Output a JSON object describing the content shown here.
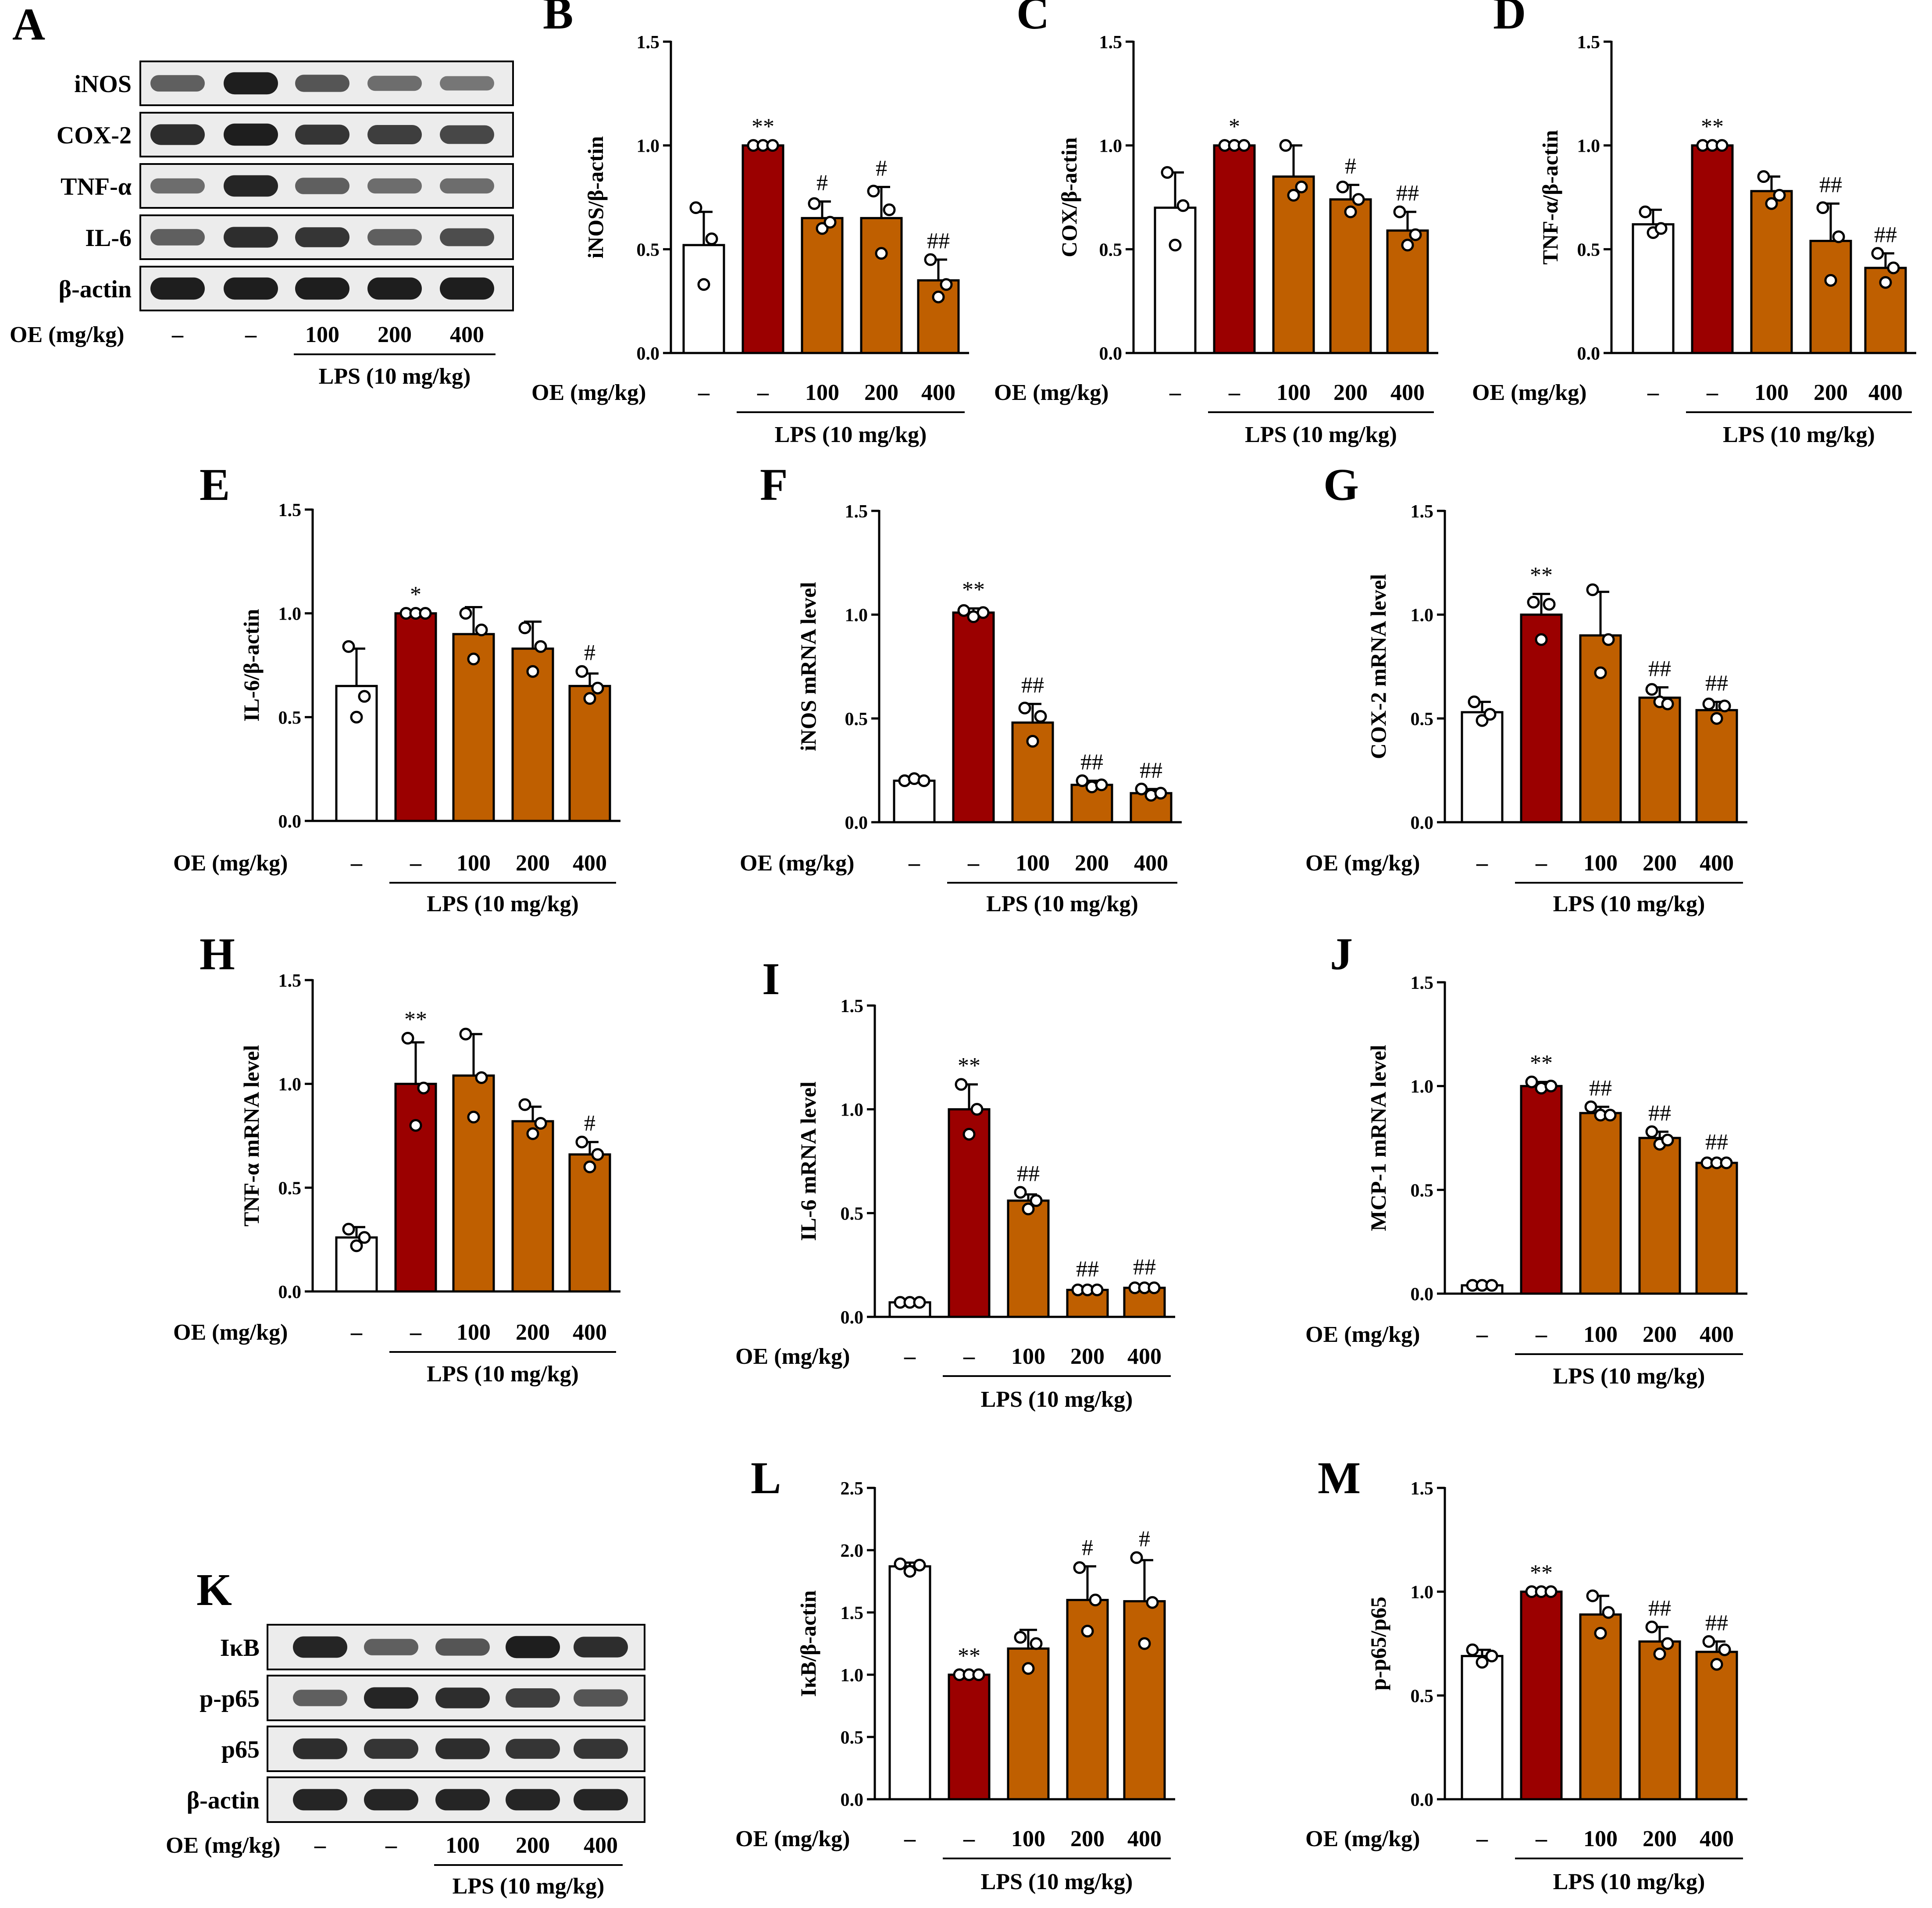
{
  "figure": {
    "colors": {
      "control": "#ffffff",
      "lps": "#9b0000",
      "oe": "#bf5f00",
      "edge": "#000000",
      "blot_bg": "#ececec",
      "band": "#151515"
    },
    "group_labels": [
      "–",
      "–",
      "100",
      "200",
      "400"
    ],
    "oe_label": "OE (mg/kg)",
    "lps_label": "LPS (10 mg/kg)"
  },
  "blots": [
    {
      "panel": "A",
      "rows": [
        "iNOS",
        "COX-2",
        "TNF-α",
        "IL-6",
        "β-actin"
      ],
      "intensity": [
        [
          0.55,
          0.95,
          0.6,
          0.45,
          0.4
        ],
        [
          0.85,
          0.95,
          0.8,
          0.75,
          0.7
        ],
        [
          0.45,
          0.9,
          0.55,
          0.45,
          0.45
        ],
        [
          0.55,
          0.85,
          0.8,
          0.55,
          0.65
        ],
        [
          0.95,
          0.95,
          0.95,
          0.95,
          0.95
        ]
      ]
    },
    {
      "panel": "K",
      "rows": [
        "IκB",
        "p-p65",
        "p65",
        "β-actin"
      ],
      "intensity": [
        [
          0.9,
          0.55,
          0.6,
          0.95,
          0.85
        ],
        [
          0.55,
          0.9,
          0.85,
          0.75,
          0.6
        ],
        [
          0.85,
          0.8,
          0.85,
          0.8,
          0.8
        ],
        [
          0.9,
          0.9,
          0.9,
          0.9,
          0.9
        ]
      ]
    }
  ],
  "chart_data": [
    {
      "panel": "B",
      "type": "bar",
      "ylabel": "iNOS/β-actin",
      "ylim": [
        0,
        1.5
      ],
      "yticks": [
        "0.0",
        "0.5",
        "1.0",
        "1.5"
      ],
      "categories": [
        "–",
        "–",
        "100",
        "200",
        "400"
      ],
      "values": [
        0.52,
        1.0,
        0.65,
        0.65,
        0.35
      ],
      "errors": [
        0.16,
        0.0,
        0.08,
        0.15,
        0.1
      ],
      "points": [
        [
          0.7,
          0.33,
          0.55
        ],
        [
          1.0,
          1.0,
          1.0
        ],
        [
          0.72,
          0.6,
          0.63
        ],
        [
          0.78,
          0.48,
          0.69
        ],
        [
          0.45,
          0.27,
          0.33
        ]
      ],
      "annotations": [
        "",
        "**",
        "#",
        "#",
        "##"
      ]
    },
    {
      "panel": "C",
      "type": "bar",
      "ylabel": "COX/β-actin",
      "ylim": [
        0,
        1.5
      ],
      "yticks": [
        "0.0",
        "0.5",
        "1.0",
        "1.5"
      ],
      "categories": [
        "–",
        "–",
        "100",
        "200",
        "400"
      ],
      "values": [
        0.7,
        1.0,
        0.85,
        0.74,
        0.59
      ],
      "errors": [
        0.17,
        0.0,
        0.15,
        0.07,
        0.09
      ],
      "points": [
        [
          0.87,
          0.52,
          0.71
        ],
        [
          1.0,
          1.0,
          1.0
        ],
        [
          1.0,
          0.76,
          0.8
        ],
        [
          0.8,
          0.68,
          0.74
        ],
        [
          0.68,
          0.52,
          0.57
        ]
      ],
      "annotations": [
        "",
        "*",
        "",
        "#",
        "##"
      ]
    },
    {
      "panel": "D",
      "type": "bar",
      "ylabel": "TNF-α/β-actin",
      "ylim": [
        0,
        1.5
      ],
      "yticks": [
        "0.0",
        "0.5",
        "1.0",
        "1.5"
      ],
      "categories": [
        "–",
        "–",
        "100",
        "200",
        "400"
      ],
      "values": [
        0.62,
        1.0,
        0.78,
        0.54,
        0.41
      ],
      "errors": [
        0.07,
        0.0,
        0.07,
        0.18,
        0.07
      ],
      "points": [
        [
          0.68,
          0.58,
          0.6
        ],
        [
          1.0,
          1.0,
          1.0
        ],
        [
          0.85,
          0.72,
          0.76
        ],
        [
          0.7,
          0.35,
          0.56
        ],
        [
          0.48,
          0.34,
          0.41
        ]
      ],
      "annotations": [
        "",
        "**",
        "",
        "##",
        "##"
      ]
    },
    {
      "panel": "E",
      "type": "bar",
      "ylabel": "IL-6/β-actin",
      "ylim": [
        0,
        1.5
      ],
      "yticks": [
        "0.0",
        "0.5",
        "1.0",
        "1.5"
      ],
      "categories": [
        "–",
        "–",
        "100",
        "200",
        "400"
      ],
      "values": [
        0.65,
        1.0,
        0.9,
        0.83,
        0.65
      ],
      "errors": [
        0.18,
        0.0,
        0.13,
        0.13,
        0.06
      ],
      "points": [
        [
          0.84,
          0.5,
          0.6
        ],
        [
          1.0,
          1.0,
          1.0
        ],
        [
          1.0,
          0.78,
          0.92
        ],
        [
          0.93,
          0.72,
          0.84
        ],
        [
          0.72,
          0.59,
          0.64
        ]
      ],
      "annotations": [
        "",
        "*",
        "",
        "",
        "#"
      ]
    },
    {
      "panel": "F",
      "type": "bar",
      "ylabel": "iNOS mRNA level",
      "ylim": [
        0,
        1.5
      ],
      "yticks": [
        "0.0",
        "0.5",
        "1.0",
        "1.5"
      ],
      "categories": [
        "–",
        "–",
        "100",
        "200",
        "400"
      ],
      "values": [
        0.2,
        1.01,
        0.48,
        0.18,
        0.14
      ],
      "errors": [
        0.01,
        0.02,
        0.09,
        0.02,
        0.02
      ],
      "points": [
        [
          0.2,
          0.21,
          0.2
        ],
        [
          1.02,
          0.99,
          1.01
        ],
        [
          0.55,
          0.39,
          0.51
        ],
        [
          0.2,
          0.17,
          0.18
        ],
        [
          0.16,
          0.13,
          0.14
        ]
      ],
      "annotations": [
        "",
        "**",
        "##",
        "##",
        "##"
      ]
    },
    {
      "panel": "G",
      "type": "bar",
      "ylabel": "COX-2 mRNA level",
      "ylim": [
        0,
        1.5
      ],
      "yticks": [
        "0.0",
        "0.5",
        "1.0",
        "1.5"
      ],
      "categories": [
        "–",
        "–",
        "100",
        "200",
        "400"
      ],
      "values": [
        0.53,
        1.0,
        0.9,
        0.6,
        0.54
      ],
      "errors": [
        0.05,
        0.1,
        0.21,
        0.05,
        0.04
      ],
      "points": [
        [
          0.58,
          0.49,
          0.52
        ],
        [
          1.06,
          0.88,
          1.05
        ],
        [
          1.12,
          0.72,
          0.88
        ],
        [
          0.64,
          0.58,
          0.57
        ],
        [
          0.57,
          0.5,
          0.56
        ]
      ],
      "annotations": [
        "",
        "**",
        "",
        "##",
        "##"
      ]
    },
    {
      "panel": "H",
      "type": "bar",
      "ylabel": "TNF-α mRNA level",
      "ylim": [
        0,
        1.5
      ],
      "yticks": [
        "0.0",
        "0.5",
        "1.0",
        "1.5"
      ],
      "categories": [
        "–",
        "–",
        "100",
        "200",
        "400"
      ],
      "values": [
        0.26,
        1.0,
        1.04,
        0.82,
        0.66
      ],
      "errors": [
        0.05,
        0.2,
        0.2,
        0.07,
        0.06
      ],
      "points": [
        [
          0.3,
          0.22,
          0.26
        ],
        [
          1.22,
          0.8,
          0.98
        ],
        [
          1.24,
          0.84,
          1.03
        ],
        [
          0.9,
          0.76,
          0.81
        ],
        [
          0.72,
          0.6,
          0.66
        ]
      ],
      "annotations": [
        "",
        "**",
        "",
        "",
        "#"
      ]
    },
    {
      "panel": "I",
      "type": "bar",
      "ylabel": "IL-6 mRNA level",
      "ylim": [
        0,
        1.5
      ],
      "yticks": [
        "0.0",
        "0.5",
        "1.0",
        "1.5"
      ],
      "categories": [
        "–",
        "–",
        "100",
        "200",
        "400"
      ],
      "values": [
        0.07,
        1.0,
        0.56,
        0.13,
        0.14
      ],
      "errors": [
        0.01,
        0.12,
        0.03,
        0.01,
        0.01
      ],
      "points": [
        [
          0.07,
          0.07,
          0.07
        ],
        [
          1.12,
          0.88,
          1.0
        ],
        [
          0.6,
          0.52,
          0.56
        ],
        [
          0.13,
          0.13,
          0.13
        ],
        [
          0.14,
          0.14,
          0.14
        ]
      ],
      "annotations": [
        "",
        "**",
        "##",
        "##",
        "##"
      ]
    },
    {
      "panel": "J",
      "type": "bar",
      "ylabel": "MCP-1 mRNA level",
      "ylim": [
        0,
        1.5
      ],
      "yticks": [
        "0.0",
        "0.5",
        "1.0",
        "1.5"
      ],
      "categories": [
        "–",
        "–",
        "100",
        "200",
        "400"
      ],
      "values": [
        0.04,
        1.0,
        0.87,
        0.75,
        0.63
      ],
      "errors": [
        0.01,
        0.02,
        0.03,
        0.03,
        0.01
      ],
      "points": [
        [
          0.04,
          0.04,
          0.04
        ],
        [
          1.02,
          0.99,
          1.0
        ],
        [
          0.9,
          0.86,
          0.86
        ],
        [
          0.78,
          0.72,
          0.74
        ],
        [
          0.63,
          0.63,
          0.63
        ]
      ],
      "annotations": [
        "",
        "**",
        "##",
        "##",
        "##"
      ]
    },
    {
      "panel": "L",
      "type": "bar",
      "ylabel": "IκB/β-actin",
      "ylim": [
        0,
        2.5
      ],
      "yticks": [
        "0.0",
        "0.5",
        "1.0",
        "1.5",
        "2.0",
        "2.5"
      ],
      "categories": [
        "–",
        "–",
        "100",
        "200",
        "400"
      ],
      "values": [
        1.87,
        1.0,
        1.21,
        1.6,
        1.59
      ],
      "errors": [
        0.03,
        0.0,
        0.15,
        0.27,
        0.33
      ],
      "points": [
        [
          1.89,
          1.83,
          1.88
        ],
        [
          1.0,
          1.0,
          1.0
        ],
        [
          1.3,
          1.05,
          1.25
        ],
        [
          1.86,
          1.35,
          1.6
        ],
        [
          1.94,
          1.25,
          1.58
        ]
      ],
      "annotations": [
        "",
        "**",
        "",
        "#",
        "#"
      ]
    },
    {
      "panel": "M",
      "type": "bar",
      "ylabel": "p-p65/p65",
      "ylim": [
        0,
        1.5
      ],
      "yticks": [
        "0.0",
        "0.5",
        "1.0",
        "1.5"
      ],
      "categories": [
        "–",
        "–",
        "100",
        "200",
        "400"
      ],
      "values": [
        0.69,
        1.0,
        0.89,
        0.76,
        0.71
      ],
      "errors": [
        0.03,
        0.0,
        0.09,
        0.07,
        0.05
      ],
      "points": [
        [
          0.72,
          0.66,
          0.69
        ],
        [
          1.0,
          1.0,
          1.0
        ],
        [
          0.98,
          0.8,
          0.9
        ],
        [
          0.83,
          0.7,
          0.75
        ],
        [
          0.76,
          0.65,
          0.72
        ]
      ],
      "annotations": [
        "",
        "**",
        "",
        "##",
        "##"
      ]
    }
  ]
}
